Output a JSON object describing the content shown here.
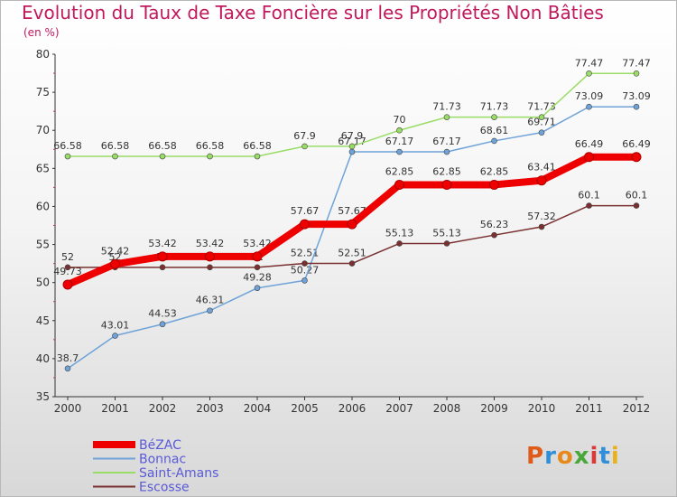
{
  "title": "Evolution du Taux de Taxe Foncière sur les Propriétés Non Bâties",
  "unit": "(en %)",
  "logo_text": "Proxiti",
  "chart_data": {
    "type": "line",
    "x": [
      "2000",
      "2001",
      "2002",
      "2003",
      "2004",
      "2005",
      "2006",
      "2007",
      "2008",
      "2009",
      "2010",
      "2011",
      "2012"
    ],
    "xlabel": "",
    "ylabel": "(en %)",
    "ylim": [
      35,
      80
    ],
    "yticks": [
      35,
      40,
      45,
      50,
      55,
      60,
      65,
      70,
      75,
      80
    ],
    "grid": false,
    "legend_position": "bottom-left",
    "series": [
      {
        "name": "BéZAC",
        "color": "#ee0000",
        "values": [
          49.73,
          52.42,
          53.42,
          53.42,
          53.42,
          57.67,
          57.67,
          62.85,
          62.85,
          62.85,
          63.41,
          66.49,
          66.49
        ],
        "labels": [
          "49.73",
          "52.42",
          "53.42",
          "53.42",
          "53.42",
          "57.67",
          "57.67",
          "62.85",
          "62.85",
          "62.85",
          "63.41",
          "66.49",
          "66.49"
        ]
      },
      {
        "name": "Bonnac",
        "color": "#6fa3d8",
        "values": [
          38.7,
          43.01,
          44.53,
          46.31,
          49.28,
          50.27,
          67.17,
          67.17,
          67.17,
          68.61,
          69.71,
          73.09,
          73.09
        ],
        "labels": [
          "38.7",
          "43.01",
          "44.53",
          "46.31",
          "49.28",
          "50.27",
          "67.17",
          "67.17",
          "67.17",
          "68.61",
          "69.71",
          "73.09",
          "73.09"
        ]
      },
      {
        "name": "Saint-Amans",
        "color": "#99dd66",
        "values": [
          66.58,
          66.58,
          66.58,
          66.58,
          66.58,
          67.9,
          67.9,
          70,
          71.73,
          71.73,
          71.73,
          77.47,
          77.47
        ],
        "labels": [
          "66.58",
          "66.58",
          "66.58",
          "66.58",
          "66.58",
          "67.9",
          "67.9",
          "70",
          "71.73",
          "71.73",
          "71.73",
          "77.47",
          "77.47"
        ]
      },
      {
        "name": "Escosse",
        "color": "#7a3030",
        "values": [
          52,
          52,
          52,
          52,
          52,
          52.51,
          52.51,
          55.13,
          55.13,
          56.23,
          57.32,
          60.1,
          60.1
        ],
        "labels": [
          "52",
          "52",
          "52",
          "52",
          "52",
          "52.51",
          "52.51",
          "55.13",
          "55.13",
          "56.23",
          "57.32",
          "60.1",
          "60.1"
        ]
      }
    ]
  }
}
